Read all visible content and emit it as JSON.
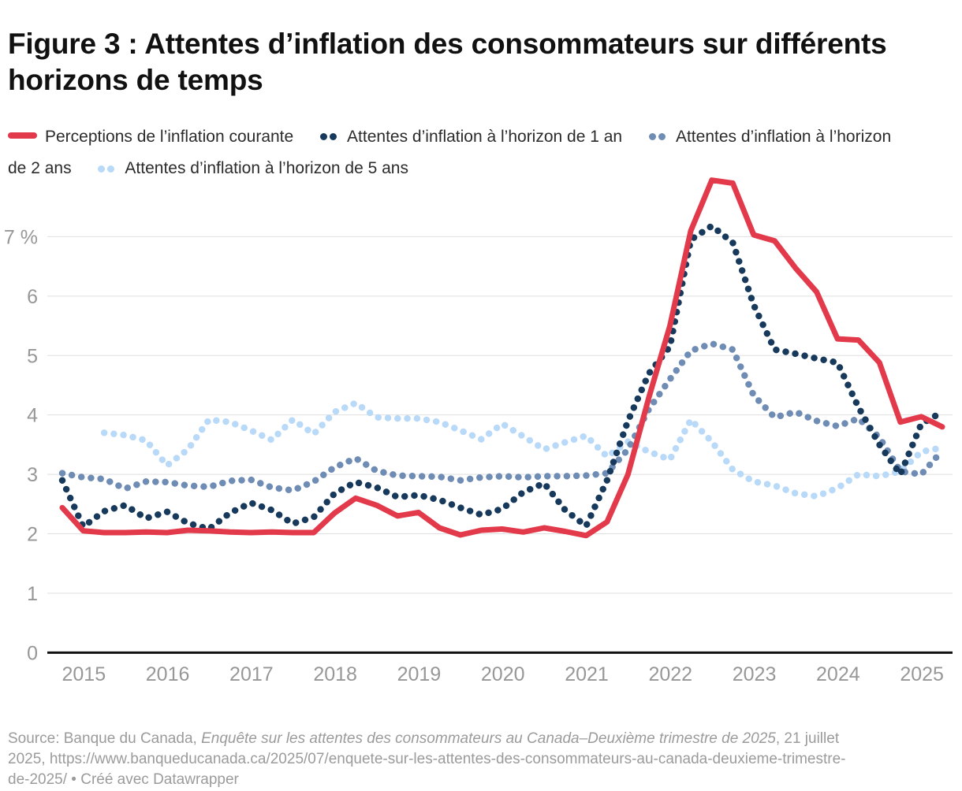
{
  "title": "Figure 3 : Attentes d’inflation des consommateurs sur différents horizons de temps",
  "legend": {
    "items": [
      {
        "label": "Perceptions de l’inflation courante",
        "color": "#e23a4a",
        "marker": "line"
      },
      {
        "label": "Attentes d’inflation à l’horizon de 1 an",
        "color": "#173a5c",
        "marker": "dots"
      },
      {
        "label": "Attentes d’inflation à l’horizon de 2 ans",
        "color": "#6e8cb4",
        "marker": "dots"
      },
      {
        "label": "Attentes d’inflation à l’horizon de 5 ans",
        "color": "#b9d9f8",
        "marker": "dots"
      }
    ]
  },
  "footer": {
    "prefix": "Source: Banque du Canada, ",
    "source_italic": "Enquête sur les attentes des consommateurs au Canada–Deuxième trimestre de 2025",
    "suffix": ", 21 juillet 2025, https://www.banqueducanada.ca/2025/07/enquete-sur-les-attentes-des-consommateurs-au-canada-deuxieme-trimestre-de-2025/ • Créé avec Datawrapper"
  },
  "chart_data": {
    "type": "line",
    "frequency": "quarterly",
    "x_start": "2014-Q4",
    "x_end": "2025-Q2",
    "x_tick_labels": [
      "2015",
      "2016",
      "2017",
      "2018",
      "2019",
      "2020",
      "2021",
      "2022",
      "2023",
      "2024",
      "2025"
    ],
    "y_tick_labels": [
      "0",
      "1",
      "2",
      "3",
      "4",
      "5",
      "6",
      "7 %"
    ],
    "ylim": [
      0,
      8
    ],
    "grid": "horizontal",
    "legend_position": "top",
    "series": [
      {
        "name": "Attentes d’inflation à l’horizon de 5 ans",
        "color": "#b9d9f8",
        "style": "dotted",
        "values": [
          null,
          null,
          3.7,
          3.66,
          3.57,
          3.15,
          3.42,
          3.92,
          3.88,
          3.74,
          3.58,
          3.92,
          3.68,
          4.05,
          4.2,
          3.96,
          3.94,
          3.94,
          3.88,
          3.74,
          3.59,
          3.85,
          3.64,
          3.42,
          3.54,
          3.65,
          3.3,
          3.55,
          3.38,
          3.25,
          3.92,
          3.55,
          3.08,
          2.88,
          2.81,
          2.68,
          2.63,
          2.77,
          3.0,
          2.97,
          3.05,
          3.38,
          3.45
        ]
      },
      {
        "name": "Attentes d’inflation à l’horizon de 2 ans",
        "color": "#6e8cb4",
        "style": "dotted",
        "values": [
          3.02,
          2.95,
          2.92,
          2.76,
          2.88,
          2.87,
          2.81,
          2.79,
          2.89,
          2.91,
          2.78,
          2.73,
          2.88,
          3.12,
          3.27,
          3.06,
          2.98,
          2.97,
          2.96,
          2.9,
          2.95,
          2.97,
          2.95,
          2.97,
          2.97,
          2.98,
          3.02,
          3.42,
          4.1,
          4.6,
          5.08,
          5.2,
          5.1,
          4.33,
          3.96,
          4.05,
          3.9,
          3.81,
          3.94,
          3.62,
          3.05,
          3.0,
          3.4
        ]
      },
      {
        "name": "Attentes d’inflation à l’horizon de 1 an",
        "color": "#173a5c",
        "style": "dotted",
        "values": [
          2.9,
          2.12,
          2.38,
          2.48,
          2.26,
          2.37,
          2.18,
          2.08,
          2.35,
          2.52,
          2.4,
          2.17,
          2.28,
          2.68,
          2.87,
          2.78,
          2.62,
          2.65,
          2.57,
          2.44,
          2.32,
          2.42,
          2.7,
          2.85,
          2.4,
          2.13,
          2.9,
          3.9,
          4.7,
          5.15,
          6.95,
          7.18,
          6.9,
          5.85,
          5.1,
          5.03,
          4.95,
          4.88,
          4.13,
          3.5,
          3.0,
          3.85,
          4.05
        ]
      },
      {
        "name": "Perceptions de l’inflation courante",
        "color": "#e23a4a",
        "style": "solid",
        "values": [
          2.44,
          2.05,
          2.02,
          2.02,
          2.03,
          2.02,
          2.06,
          2.05,
          2.03,
          2.02,
          2.03,
          2.02,
          2.02,
          2.35,
          2.6,
          2.48,
          2.3,
          2.36,
          2.1,
          1.98,
          2.06,
          2.08,
          2.03,
          2.1,
          2.04,
          1.97,
          2.2,
          3.0,
          4.3,
          5.5,
          7.1,
          7.95,
          7.9,
          7.03,
          6.93,
          6.47,
          6.07,
          5.28,
          5.26,
          4.88,
          3.88,
          3.97,
          3.8
        ]
      }
    ]
  },
  "colors": {
    "background": "#ffffff",
    "gridline": "#dfdfdf",
    "baseline": "#111111",
    "axis_label": "#979797",
    "title": "#111111",
    "footer": "#9b9b9b"
  }
}
